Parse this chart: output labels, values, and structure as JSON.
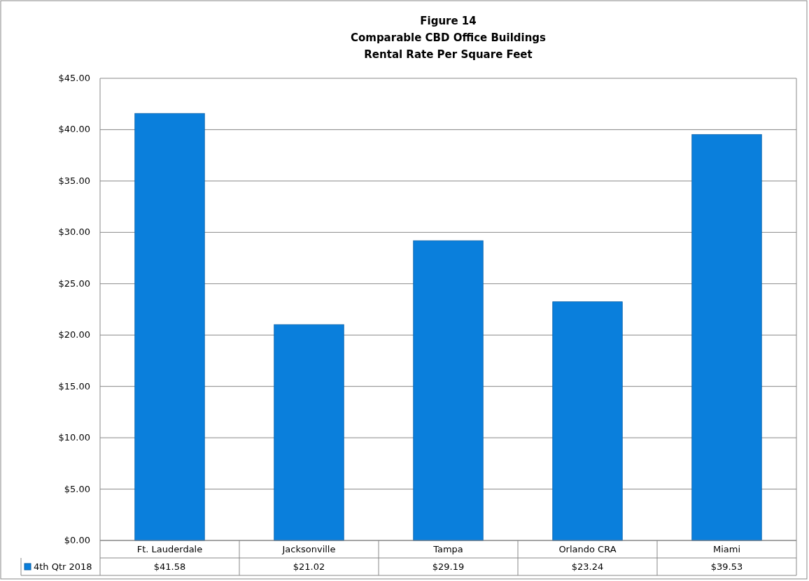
{
  "chart_data": {
    "type": "bar",
    "title": "Figure 14\nComparable CBD Office Buildings\nRental Rate Per Square Feet",
    "categories": [
      "Ft. Lauderdale",
      "Jacksonville",
      "Tampa",
      "Orlando CRA",
      "Miami"
    ],
    "series": [
      {
        "name": "4th Qtr 2018",
        "color": "#0a7fdc",
        "values": [
          41.58,
          21.02,
          29.19,
          23.24,
          39.53
        ],
        "value_labels": [
          "$41.58",
          "$21.02",
          "$29.19",
          "$23.24",
          "$39.53"
        ]
      }
    ],
    "ylim": [
      0,
      45
    ],
    "yticks": [
      {
        "value": 0,
        "label": "$0.00"
      },
      {
        "value": 5,
        "label": "$5.00"
      },
      {
        "value": 10,
        "label": "$10.00"
      },
      {
        "value": 15,
        "label": "$15.00"
      },
      {
        "value": 20,
        "label": "$20.00"
      },
      {
        "value": 25,
        "label": "$25.00"
      },
      {
        "value": 30,
        "label": "$30.00"
      },
      {
        "value": 35,
        "label": "$35.00"
      },
      {
        "value": 40,
        "label": "$40.00"
      },
      {
        "value": 45,
        "label": "$45.00"
      }
    ],
    "grid": "y",
    "legend": "bottom"
  }
}
